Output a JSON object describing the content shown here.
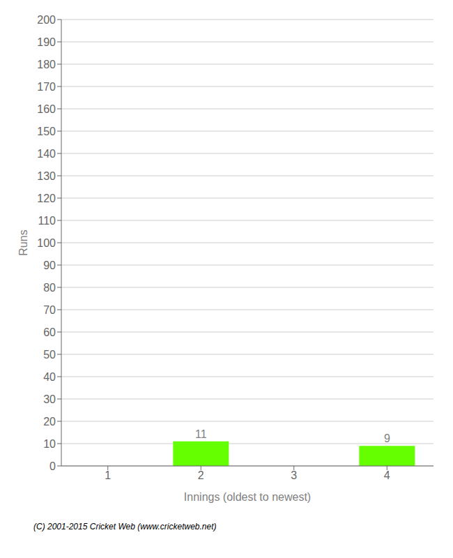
{
  "chart_data": {
    "type": "bar",
    "categories": [
      "1",
      "2",
      "3",
      "4"
    ],
    "values": [
      0,
      11,
      0,
      9
    ],
    "color": "#66ff00",
    "xlabel": "Innings (oldest to newest)",
    "ylabel": "Runs",
    "ylim": [
      0,
      200
    ],
    "yticks": [
      0,
      10,
      20,
      30,
      40,
      50,
      60,
      70,
      80,
      90,
      100,
      110,
      120,
      130,
      140,
      150,
      160,
      170,
      180,
      190,
      200
    ],
    "grid": true,
    "data_labels": true,
    "annotations": [
      "(C) 2001-2015 Cricket Web (www.cricketweb.net)"
    ]
  }
}
